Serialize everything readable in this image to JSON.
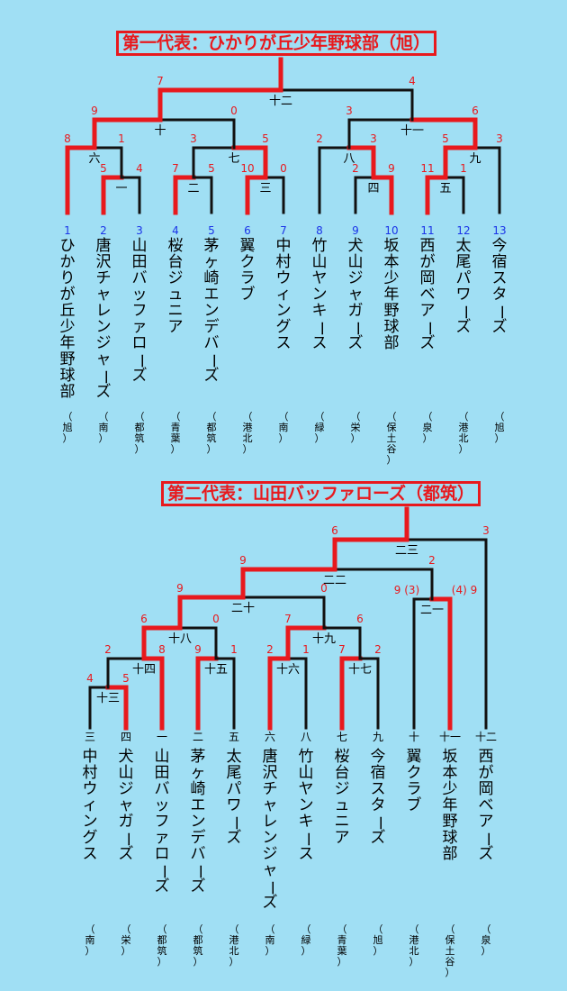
{
  "colors": {
    "background": "#a0dff4",
    "winner_line": "#e8191d",
    "line": "#111111",
    "score": "#e8191d",
    "seed_number": "#1b34e8"
  },
  "bracket1": {
    "title": "第一代表：ひかりが丘少年野球部（旭）",
    "teams": [
      {
        "no": "1",
        "name": "ひかりが丘少年野球部",
        "area": "（旭）"
      },
      {
        "no": "2",
        "name": "唐沢チャレンジャーズ",
        "area": "（南）"
      },
      {
        "no": "3",
        "name": "山田バッファローズ",
        "area": "（都筑）"
      },
      {
        "no": "4",
        "name": "桜台ジュニア",
        "area": "（青葉）"
      },
      {
        "no": "5",
        "name": "茅ヶ崎エンデバーズ",
        "area": "（都筑）"
      },
      {
        "no": "6",
        "name": "翼クラブ",
        "area": "（港北）"
      },
      {
        "no": "7",
        "name": "中村ウィングス",
        "area": "（南）"
      },
      {
        "no": "8",
        "name": "竹山ヤンキース",
        "area": "（緑）"
      },
      {
        "no": "9",
        "name": "犬山ジャガーズ",
        "area": "（栄）"
      },
      {
        "no": "10",
        "name": "坂本少年野球部",
        "area": "（保土谷）"
      },
      {
        "no": "11",
        "name": "西が岡ベアーズ",
        "area": "（泉）"
      },
      {
        "no": "12",
        "name": "太尾パワーズ",
        "area": "（港北）"
      },
      {
        "no": "13",
        "name": "今宿スターズ",
        "area": "（旭）"
      }
    ],
    "games": [
      {
        "id": "一",
        "left_score": "5",
        "right_score": "4",
        "winner": "left"
      },
      {
        "id": "二",
        "left_score": "7",
        "right_score": "5",
        "winner": "left"
      },
      {
        "id": "三",
        "left_score": "10",
        "right_score": "0",
        "winner": "left"
      },
      {
        "id": "四",
        "left_score": "2",
        "right_score": "9",
        "winner": "right"
      },
      {
        "id": "五",
        "left_score": "11",
        "right_score": "1",
        "winner": "left"
      },
      {
        "id": "六",
        "left_score": "8",
        "right_score": "1",
        "winner": "left"
      },
      {
        "id": "七",
        "left_score": "3",
        "right_score": "5",
        "winner": "right"
      },
      {
        "id": "八",
        "left_score": "2",
        "right_score": "3",
        "winner": "right"
      },
      {
        "id": "九",
        "left_score": "5",
        "right_score": "3",
        "winner": "left"
      },
      {
        "id": "十",
        "left_score": "9",
        "right_score": "0",
        "winner": "left"
      },
      {
        "id": "十一",
        "left_score": "3",
        "right_score": "6",
        "winner": "right"
      },
      {
        "id": "十二",
        "left_score": "7",
        "right_score": "4",
        "winner": "left"
      }
    ]
  },
  "bracket2": {
    "title": "第二代表：山田バッファローズ（都筑）",
    "teams": [
      {
        "no": "三",
        "name": "中村ウィングス",
        "area": "（南）"
      },
      {
        "no": "四",
        "name": "犬山ジャガーズ",
        "area": "（栄）"
      },
      {
        "no": "一",
        "name": "山田バッファローズ",
        "area": "（都筑）"
      },
      {
        "no": "二",
        "name": "茅ヶ崎エンデバーズ",
        "area": "（都筑）"
      },
      {
        "no": "五",
        "name": "太尾パワーズ",
        "area": "（港北）"
      },
      {
        "no": "六",
        "name": "唐沢チャレンジャーズ",
        "area": "（南）"
      },
      {
        "no": "八",
        "name": "竹山ヤンキース",
        "area": "（緑）"
      },
      {
        "no": "七",
        "name": "桜台ジュニア",
        "area": "（青葉）"
      },
      {
        "no": "九",
        "name": "今宿スターズ",
        "area": "（旭）"
      },
      {
        "no": "十",
        "name": "翼クラブ",
        "area": "（港北）"
      },
      {
        "no": "十一",
        "name": "坂本少年野球部",
        "area": "（保土谷）"
      },
      {
        "no": "十二",
        "name": "西が岡ベアーズ",
        "area": "（泉）"
      }
    ],
    "games": [
      {
        "id": "十三",
        "left_score": "4",
        "right_score": "5",
        "winner": "right"
      },
      {
        "id": "十四",
        "left_score": "2",
        "right_score": "8",
        "winner": "right"
      },
      {
        "id": "十五",
        "left_score": "9",
        "right_score": "1",
        "winner": "left"
      },
      {
        "id": "十六",
        "left_score": "2",
        "right_score": "1",
        "winner": "left"
      },
      {
        "id": "十七",
        "left_score": "7",
        "right_score": "2",
        "winner": "left"
      },
      {
        "id": "十八",
        "left_score": "6",
        "right_score": "0",
        "winner": "left"
      },
      {
        "id": "十九",
        "left_score": "7",
        "right_score": "6",
        "winner": "left"
      },
      {
        "id": "二十",
        "left_score": "9",
        "right_score": "0",
        "winner": "left"
      },
      {
        "id": "二一",
        "left_score": "9",
        "right_score": "9",
        "left_pk": "(3)",
        "right_pk": "(4)",
        "winner": "right"
      },
      {
        "id": "二二",
        "left_score": "9",
        "right_score": "2",
        "winner": "left"
      },
      {
        "id": "二三",
        "left_score": "6",
        "right_score": "3",
        "winner": "left"
      }
    ]
  }
}
